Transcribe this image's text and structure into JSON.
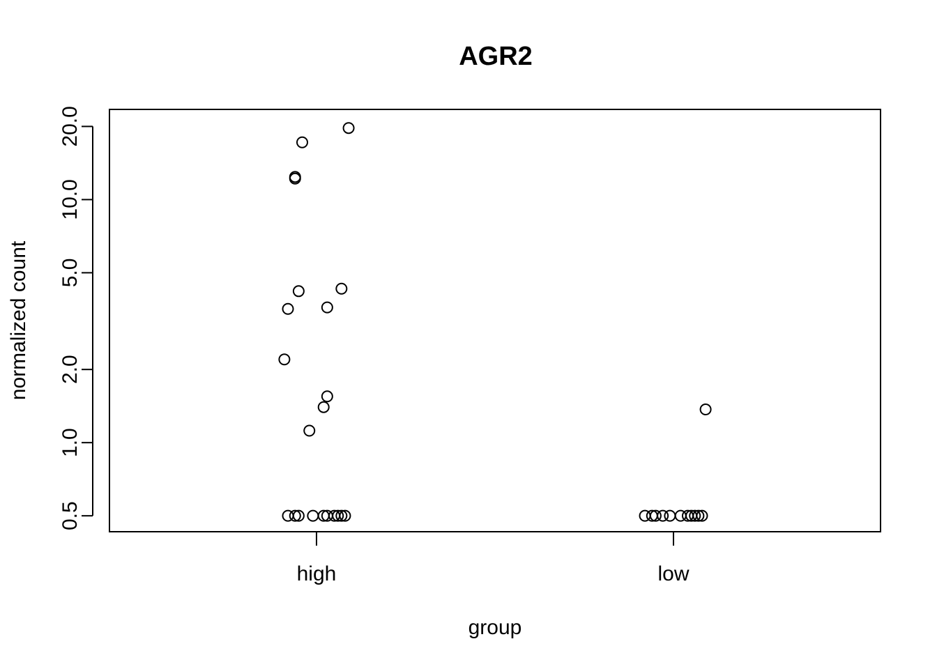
{
  "chart_data": {
    "type": "scatter",
    "title": "AGR2",
    "xlabel": "group",
    "ylabel": "normalized count",
    "y_scale": "log",
    "ylim": [
      0.43,
      23.5
    ],
    "categories": [
      "high",
      "low"
    ],
    "yticks": [
      {
        "value": 0.5,
        "label": "0.5"
      },
      {
        "value": 1.0,
        "label": "1.0"
      },
      {
        "value": 2.0,
        "label": "2.0"
      },
      {
        "value": 5.0,
        "label": "5.0"
      },
      {
        "value": 10.0,
        "label": "10.0"
      },
      {
        "value": 20.0,
        "label": "20.0"
      }
    ],
    "grid": false,
    "legend": "none",
    "series": [
      {
        "category": "high",
        "values": [
          19.7,
          17.2,
          12.4,
          12.2,
          4.3,
          4.2,
          3.6,
          3.55,
          2.2,
          1.55,
          1.4,
          1.12,
          0.5,
          0.5,
          0.5,
          0.5,
          0.5,
          0.5,
          0.5,
          0.5,
          0.5,
          0.5
        ],
        "jitter": [
          0.09,
          -0.04,
          -0.06,
          -0.06,
          0.07,
          -0.05,
          0.03,
          -0.08,
          -0.09,
          0.03,
          0.02,
          -0.02,
          -0.08,
          -0.06,
          -0.05,
          -0.01,
          0.02,
          0.03,
          0.05,
          0.06,
          0.07,
          0.08
        ]
      },
      {
        "category": "low",
        "values": [
          1.37,
          0.5,
          0.5,
          0.5,
          0.5,
          0.5,
          0.5,
          0.5,
          0.5,
          0.5,
          0.5,
          0.5
        ],
        "jitter": [
          0.09,
          -0.08,
          -0.06,
          -0.05,
          -0.03,
          -0.01,
          0.02,
          0.04,
          0.05,
          0.06,
          0.07,
          0.08
        ]
      }
    ]
  }
}
